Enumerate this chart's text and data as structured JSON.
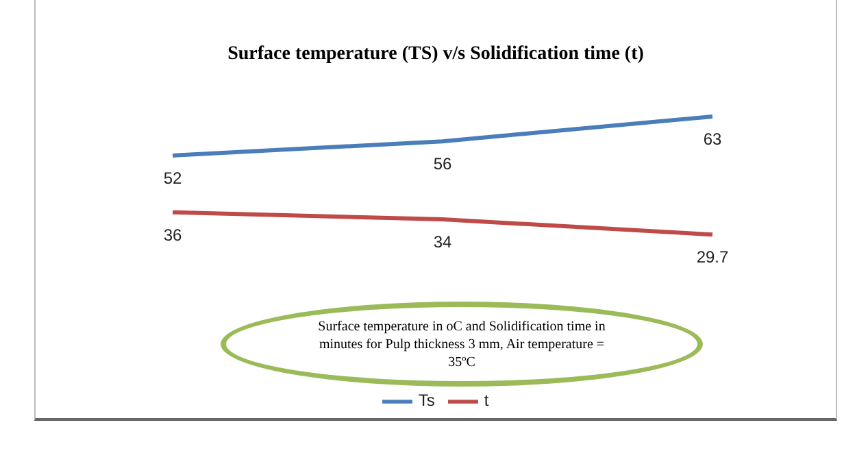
{
  "chart_data": {
    "type": "line",
    "title": "Surface temperature (TS) v/s Solidification time (t)",
    "categories": [
      null,
      null,
      null
    ],
    "series": [
      {
        "name": "Ts",
        "color": "#4a7ebb",
        "values": [
          52,
          56,
          63
        ]
      },
      {
        "name": "t",
        "color": "#be4b48",
        "values": [
          36,
          34,
          29.7
        ]
      }
    ],
    "data_labels": true,
    "legend": "bottom",
    "annotations": [
      "Surface temperature in oC and Solidification time in minutes for Pulp thickness 3 mm, Air temperature = 35ºC"
    ]
  }
}
